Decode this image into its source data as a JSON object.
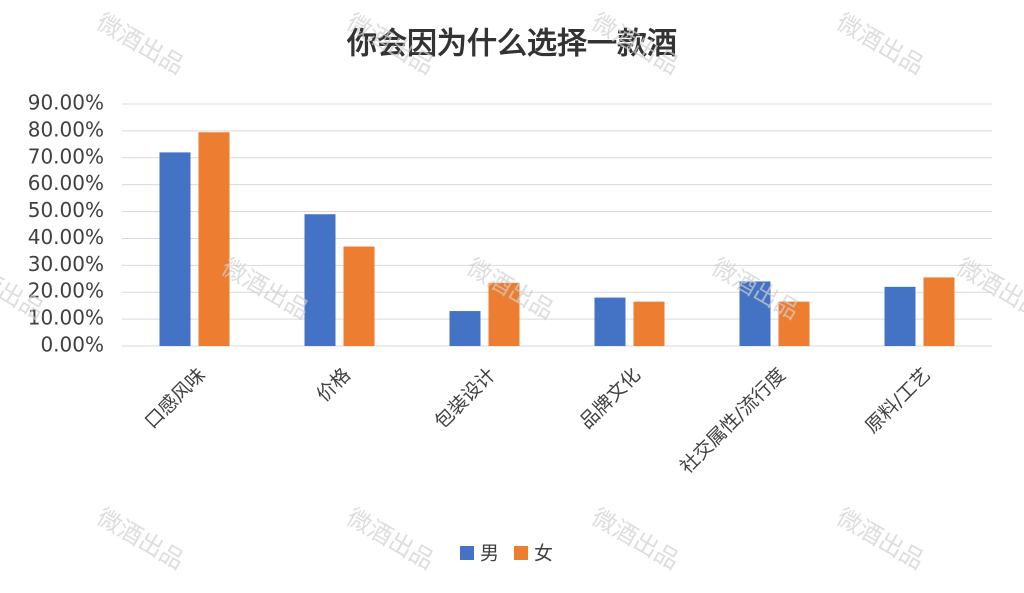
{
  "chart_data": {
    "type": "bar",
    "title": "你会因为什么选择一款酒",
    "watermark": "微酒出品",
    "categories": [
      "口感风味",
      "价格",
      "包装设计",
      "品牌文化",
      "社交属性/流行度",
      "原料/工艺"
    ],
    "series": [
      {
        "name": "男",
        "color": "#4472c4",
        "values": [
          72,
          49,
          13,
          18,
          24,
          22
        ]
      },
      {
        "name": "女",
        "color": "#ed7d31",
        "values": [
          79.5,
          37,
          23.5,
          16.5,
          16.5,
          25.5
        ]
      }
    ],
    "ylim": [
      0,
      90
    ],
    "yticks": [
      {
        "value": 0,
        "label": "0.00%"
      },
      {
        "value": 10,
        "label": "10.00%"
      },
      {
        "value": 20,
        "label": "20.00%"
      },
      {
        "value": 30,
        "label": "30.00%"
      },
      {
        "value": 40,
        "label": "40.00%"
      },
      {
        "value": 50,
        "label": "50.00%"
      },
      {
        "value": 60,
        "label": "60.00%"
      },
      {
        "value": 70,
        "label": "70.00%"
      },
      {
        "value": 80,
        "label": "80.00%"
      },
      {
        "value": 90,
        "label": "90.00%"
      }
    ],
    "grid": true,
    "legend": "bottom"
  }
}
